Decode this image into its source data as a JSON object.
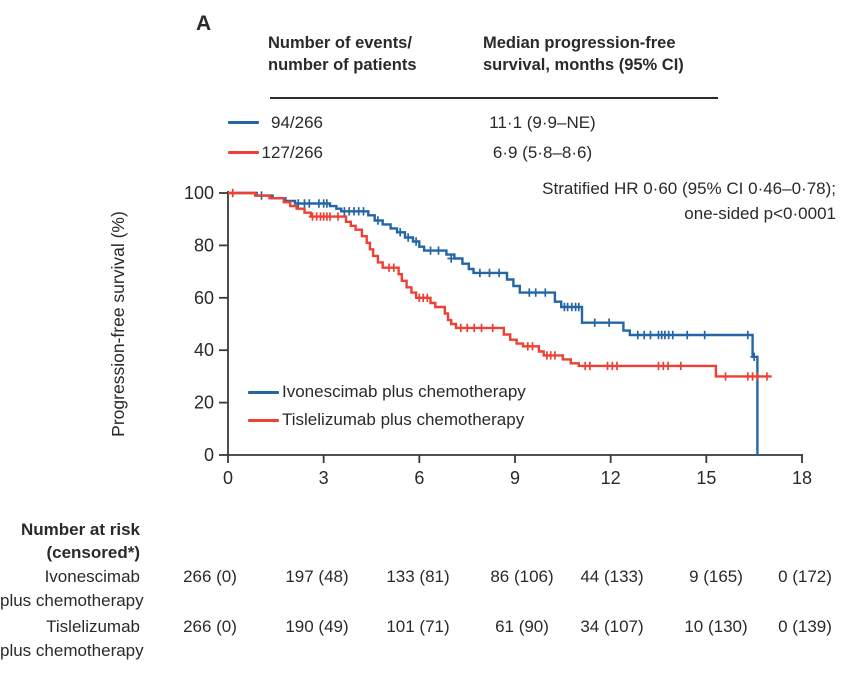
{
  "panel_label": "A",
  "summary_table": {
    "col1_header": [
      "Number of events/",
      "number of patients"
    ],
    "col2_header": [
      "Median progression-free",
      "survival, months (95% CI)"
    ],
    "rows": [
      {
        "events": "94/266",
        "median": "11·1 (9·9–NE)"
      },
      {
        "events": "127/266",
        "median": "6·9 (5·8–8·6)"
      }
    ]
  },
  "annotation": {
    "line1": "Stratified HR 0·60 (95% CI 0·46–0·78);",
    "line2": "one-sided p<0·0001"
  },
  "chart_data": {
    "type": "line",
    "subtype": "kaplan-meier-step",
    "title": "",
    "xlabel": "",
    "ylabel": "Progression-free survival (%)",
    "xlim": [
      0,
      18
    ],
    "ylim": [
      0,
      100
    ],
    "xticks": [
      0,
      3,
      6,
      9,
      12,
      15,
      18
    ],
    "yticks": [
      0,
      20,
      40,
      60,
      80,
      100
    ],
    "grid": false,
    "legend_position": "inside-lower-left",
    "series": [
      {
        "name": "Ivonescimab plus chemotherapy",
        "color": "#2465a5",
        "events_patients": "94/266",
        "median_pfs_months": "11·1 (9·9–NE)",
        "steps": [
          [
            0,
            100
          ],
          [
            0.9,
            99
          ],
          [
            1.4,
            98
          ],
          [
            1.8,
            97
          ],
          [
            2.1,
            96
          ],
          [
            3.2,
            95
          ],
          [
            3.4,
            94
          ],
          [
            3.55,
            93
          ],
          [
            4.4,
            91.5
          ],
          [
            4.6,
            89.5
          ],
          [
            4.85,
            88
          ],
          [
            5.1,
            86.5
          ],
          [
            5.3,
            85
          ],
          [
            5.55,
            83
          ],
          [
            5.8,
            81.5
          ],
          [
            6.0,
            79.5
          ],
          [
            6.15,
            78
          ],
          [
            6.85,
            76.5
          ],
          [
            7.1,
            75
          ],
          [
            7.35,
            73
          ],
          [
            7.55,
            71
          ],
          [
            7.7,
            69.5
          ],
          [
            8.75,
            67
          ],
          [
            8.95,
            64.5
          ],
          [
            9.15,
            62
          ],
          [
            10.25,
            58.5
          ],
          [
            10.45,
            56.5
          ],
          [
            11.1,
            50.5
          ],
          [
            12.4,
            47.5
          ],
          [
            12.6,
            45.8
          ],
          [
            16.45,
            37.5
          ],
          [
            16.6,
            0
          ]
        ],
        "censors": [
          [
            1.05,
            99
          ],
          [
            2.2,
            96
          ],
          [
            2.4,
            96
          ],
          [
            2.55,
            96
          ],
          [
            2.85,
            96
          ],
          [
            3.0,
            96
          ],
          [
            3.1,
            96
          ],
          [
            3.65,
            93
          ],
          [
            3.8,
            93
          ],
          [
            3.95,
            93
          ],
          [
            4.1,
            93
          ],
          [
            4.25,
            93
          ],
          [
            4.7,
            89.5
          ],
          [
            5.4,
            85
          ],
          [
            5.65,
            83
          ],
          [
            5.9,
            81.5
          ],
          [
            6.35,
            78
          ],
          [
            6.6,
            78
          ],
          [
            7.0,
            75
          ],
          [
            7.9,
            69.5
          ],
          [
            8.2,
            69.5
          ],
          [
            8.5,
            69.5
          ],
          [
            9.45,
            62
          ],
          [
            9.65,
            62
          ],
          [
            9.95,
            62
          ],
          [
            10.55,
            56.5
          ],
          [
            10.65,
            56.5
          ],
          [
            10.78,
            56.5
          ],
          [
            10.9,
            56.5
          ],
          [
            11.0,
            56.5
          ],
          [
            11.5,
            50.5
          ],
          [
            11.95,
            50.5
          ],
          [
            12.85,
            45.8
          ],
          [
            13.05,
            45.8
          ],
          [
            13.25,
            45.8
          ],
          [
            13.5,
            45.8
          ],
          [
            13.6,
            45.8
          ],
          [
            13.7,
            45.8
          ],
          [
            13.82,
            45.8
          ],
          [
            13.95,
            45.8
          ],
          [
            14.4,
            45.8
          ],
          [
            14.95,
            45.8
          ],
          [
            16.3,
            45.8
          ],
          [
            16.5,
            37.5
          ]
        ]
      },
      {
        "name": "Tislelizumab plus chemotherapy",
        "color": "#ee4035",
        "events_patients": "127/266",
        "median_pfs_months": "6·9 (5·8–8·6)",
        "steps": [
          [
            0,
            100
          ],
          [
            0.85,
            99
          ],
          [
            1.3,
            98
          ],
          [
            1.75,
            96.5
          ],
          [
            1.95,
            95
          ],
          [
            2.15,
            94
          ],
          [
            2.4,
            92.5
          ],
          [
            2.6,
            91
          ],
          [
            3.7,
            89
          ],
          [
            3.85,
            87.5
          ],
          [
            4.0,
            86
          ],
          [
            4.2,
            83.5
          ],
          [
            4.35,
            81
          ],
          [
            4.45,
            78.5
          ],
          [
            4.55,
            76
          ],
          [
            4.7,
            73.5
          ],
          [
            4.85,
            71.5
          ],
          [
            5.35,
            69
          ],
          [
            5.45,
            66.5
          ],
          [
            5.6,
            64
          ],
          [
            5.75,
            62
          ],
          [
            5.9,
            60
          ],
          [
            6.35,
            58
          ],
          [
            6.5,
            56.5
          ],
          [
            6.8,
            54
          ],
          [
            6.9,
            51.5
          ],
          [
            7.0,
            50
          ],
          [
            7.15,
            48.5
          ],
          [
            8.65,
            46
          ],
          [
            8.85,
            44
          ],
          [
            9.05,
            42.5
          ],
          [
            9.25,
            41.5
          ],
          [
            9.75,
            39.5
          ],
          [
            9.9,
            38
          ],
          [
            10.5,
            36.5
          ],
          [
            10.75,
            35
          ],
          [
            11.0,
            34
          ],
          [
            15.3,
            30
          ],
          [
            17.05,
            30
          ]
        ],
        "censors": [
          [
            0.15,
            100
          ],
          [
            2.65,
            91
          ],
          [
            2.78,
            91
          ],
          [
            2.9,
            91
          ],
          [
            3.0,
            91
          ],
          [
            3.1,
            91
          ],
          [
            3.2,
            91
          ],
          [
            3.45,
            91
          ],
          [
            5.05,
            71.5
          ],
          [
            5.2,
            71.5
          ],
          [
            6.0,
            60
          ],
          [
            6.12,
            60
          ],
          [
            6.25,
            60
          ],
          [
            7.3,
            48.5
          ],
          [
            7.5,
            48.5
          ],
          [
            7.72,
            48.5
          ],
          [
            7.95,
            48.5
          ],
          [
            8.3,
            48.5
          ],
          [
            9.4,
            41.5
          ],
          [
            9.55,
            41.5
          ],
          [
            10.0,
            38
          ],
          [
            10.12,
            38
          ],
          [
            10.25,
            38
          ],
          [
            11.2,
            34
          ],
          [
            11.35,
            34
          ],
          [
            11.9,
            34
          ],
          [
            12.05,
            34
          ],
          [
            12.2,
            34
          ],
          [
            13.5,
            34
          ],
          [
            13.65,
            34
          ],
          [
            13.8,
            34
          ],
          [
            14.2,
            34
          ],
          [
            15.6,
            30
          ],
          [
            16.3,
            30
          ],
          [
            16.45,
            30
          ],
          [
            16.6,
            30
          ],
          [
            16.9,
            30
          ]
        ]
      }
    ]
  },
  "at_risk": {
    "header_line1": "Number at risk",
    "header_line2": "(censored*)",
    "rows": [
      {
        "label_line1": "Ivonescimab",
        "label_line2": "plus chemotherapy",
        "values": [
          "266 (0)",
          "197 (48)",
          "133 (81)",
          "86 (106)",
          "44 (133)",
          "9 (165)",
          "0 (172)"
        ]
      },
      {
        "label_line1": "Tislelizumab",
        "label_line2": "plus chemotherapy",
        "values": [
          "266 (0)",
          "190 (49)",
          "101 (71)",
          "61 (90)",
          "34 (107)",
          "10 (130)",
          "0 (139)"
        ]
      }
    ]
  },
  "colors": {
    "axis": "#39383a",
    "text": "#2b2a28",
    "blue": "#2465a5",
    "red": "#ee4035"
  }
}
